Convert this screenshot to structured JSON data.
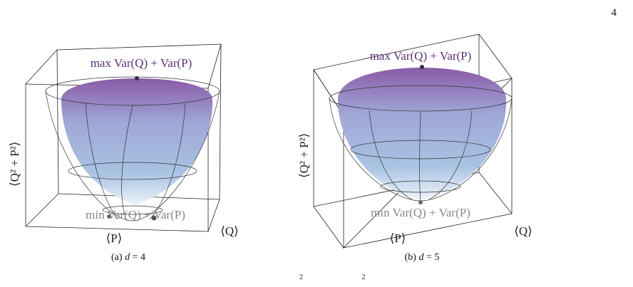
{
  "page_number": "4",
  "panels": [
    {
      "caption_prefix": "(a)",
      "caption_var": "d",
      "caption_rest": " = 4",
      "max_label": "max Var(Q) + Var(P)",
      "min_label": "min Var(Q) + Var(P)",
      "y_axis_label": "⟨Q² + P²⟩",
      "x_axis_label": "⟨P⟩",
      "z_axis_label": "⟨Q⟩"
    },
    {
      "caption_prefix": "(b)",
      "caption_var": "d",
      "caption_rest": " = 5",
      "max_label": "max Var(Q) + Var(P)",
      "min_label": "min Var(Q) + Var(P)",
      "y_axis_label": "⟨Q² + P²⟩",
      "x_axis_label": "⟨P⟩",
      "z_axis_label": "⟨Q⟩"
    }
  ],
  "footer_fragment": "2 2",
  "colors": {
    "surface_top": "#8a5aa8",
    "surface_mid": "#a9bfdf",
    "surface_bottom": "#e8eef7",
    "max_label": "#5a3278",
    "min_label": "#888888"
  }
}
